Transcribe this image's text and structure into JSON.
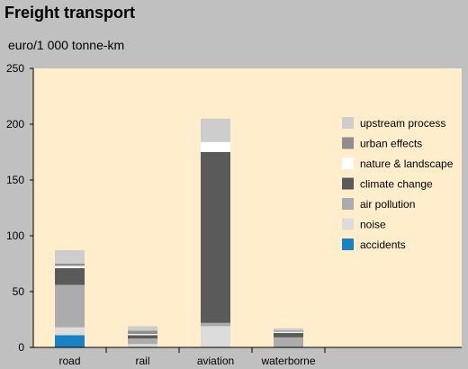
{
  "chart_data": {
    "type": "bar",
    "stacked": true,
    "title": "Freight transport",
    "ylabel": "euro/1 000 tonne-km",
    "xlabel": "",
    "ylim": [
      0,
      250
    ],
    "yticks": [
      0,
      50,
      100,
      150,
      200,
      250
    ],
    "categories": [
      "road",
      "rail",
      "aviation",
      "waterborne"
    ],
    "legend_position": "right",
    "series": [
      {
        "name": "accidents",
        "color": "#1a82c4",
        "values": [
          11,
          0,
          0,
          0
        ]
      },
      {
        "name": "noise",
        "color": "#dcdcdc",
        "values": [
          7,
          3,
          19,
          0
        ]
      },
      {
        "name": "air pollution",
        "color": "#acacac",
        "values": [
          38,
          5,
          3,
          9
        ]
      },
      {
        "name": "climate change",
        "color": "#5a5a5a",
        "values": [
          15,
          3,
          153,
          4
        ]
      },
      {
        "name": "nature & landscape",
        "color": "#ffffff",
        "values": [
          2,
          1,
          9,
          1
        ]
      },
      {
        "name": "urban effects",
        "color": "#8e8e8e",
        "values": [
          2,
          3,
          0,
          1
        ]
      },
      {
        "name": "upstream process",
        "color": "#cdcdcd",
        "values": [
          12,
          4,
          21,
          2
        ]
      }
    ]
  }
}
